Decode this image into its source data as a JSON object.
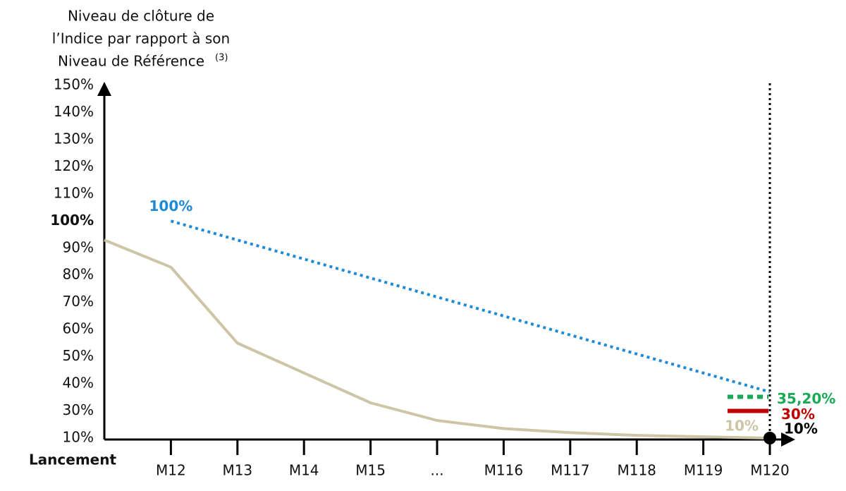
{
  "chart_data": {
    "type": "line",
    "y_title_lines": [
      "Niveau de clôture de",
      "l’Indice par rapport à son",
      "Niveau de Référence"
    ],
    "y_title_superscript": "(3)",
    "categories": [
      "Lancement",
      "M12",
      "M13",
      "M14",
      "M15",
      "...",
      "M116",
      "M117",
      "M118",
      "M119",
      "M120"
    ],
    "ylim": [
      10,
      150
    ],
    "yticks": [
      {
        "value": 10,
        "label": "10%"
      },
      {
        "value": 30,
        "label": "30%"
      },
      {
        "value": 40,
        "label": "40%"
      },
      {
        "value": 50,
        "label": "50%"
      },
      {
        "value": 60,
        "label": "60%"
      },
      {
        "value": 70,
        "label": "70%"
      },
      {
        "value": 80,
        "label": "80%"
      },
      {
        "value": 90,
        "label": "90%"
      },
      {
        "value": 100,
        "label": "100%"
      },
      {
        "value": 110,
        "label": "110%"
      },
      {
        "value": 120,
        "label": "120%"
      },
      {
        "value": 130,
        "label": "130%"
      },
      {
        "value": 140,
        "label": "140%"
      },
      {
        "value": 150,
        "label": "150%"
      }
    ],
    "emphasized_ytick": 100,
    "series": [
      {
        "color": "#cdc5a6",
        "style": "solid",
        "values": [
          93,
          83,
          55,
          44,
          33,
          23,
          17,
          14,
          12,
          11,
          10
        ],
        "value_labels": [
          null,
          null,
          null,
          null,
          null,
          null,
          null,
          null,
          null,
          null,
          "10%"
        ]
      },
      {
        "color": "#1f8ad6",
        "style": "dotted",
        "values": [
          null,
          100,
          93,
          86,
          79,
          72,
          65,
          58,
          51,
          44,
          37
        ],
        "value_labels": [
          null,
          "100%",
          null,
          null,
          null,
          null,
          null,
          null,
          null,
          null,
          null
        ]
      }
    ],
    "levels": [
      {
        "value": 35.2,
        "label": "35,20%",
        "color": "#1aaa55",
        "style": "dotted"
      },
      {
        "value": 30,
        "label": "30%",
        "color": "#c00000",
        "style": "solid"
      },
      {
        "value": 10,
        "label": "10%",
        "color": "#000000",
        "style": "dot"
      }
    ]
  }
}
